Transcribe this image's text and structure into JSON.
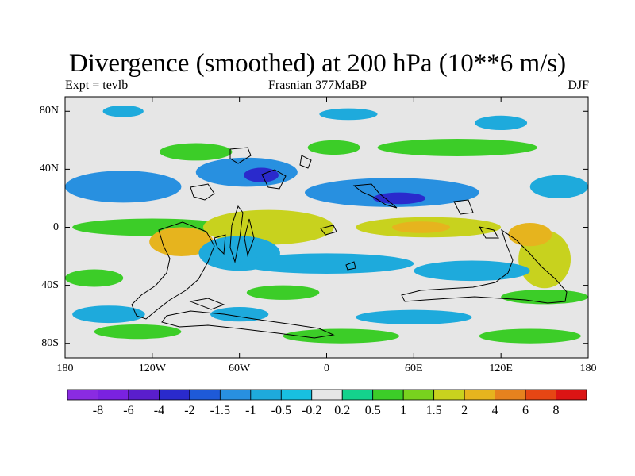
{
  "title": "Divergence (smoothed) at 200 hPa (10**6 m/s)",
  "subtitle_left": "Expt = tevlb",
  "subtitle_center": "Frasnian 377MaBP",
  "subtitle_right": "DJF",
  "chart_data": {
    "type": "heatmap",
    "projection": "cylindrical-equidistant",
    "variable": "200 hPa divergence (smoothed)",
    "units": "10**6 m/s",
    "xlim": [
      -180,
      180
    ],
    "ylim": [
      -90,
      90
    ],
    "x_ticks": [
      {
        "value": -180,
        "label": "180"
      },
      {
        "value": -120,
        "label": "120W"
      },
      {
        "value": -60,
        "label": "60W"
      },
      {
        "value": 0,
        "label": "0"
      },
      {
        "value": 60,
        "label": "60E"
      },
      {
        "value": 120,
        "label": "120E"
      },
      {
        "value": 180,
        "label": "180"
      }
    ],
    "y_ticks": [
      {
        "value": 80,
        "label": "80N"
      },
      {
        "value": 40,
        "label": "40N"
      },
      {
        "value": 0,
        "label": "0"
      },
      {
        "value": -40,
        "label": "40S"
      },
      {
        "value": -80,
        "label": "80S"
      }
    ],
    "colorbar": {
      "labels": [
        "-8",
        "-6",
        "-4",
        "-2",
        "-1.5",
        "-1",
        "-0.5",
        "-0.2",
        "0.2",
        "0.5",
        "1",
        "1.5",
        "2",
        "4",
        "6",
        "8"
      ],
      "colors": [
        "#8a2be2",
        "#7a22e0",
        "#5a1ecc",
        "#2a2acc",
        "#1e5ad8",
        "#2890e0",
        "#1eaadc",
        "#18c0e0",
        "#e6e6e6",
        "#14d28c",
        "#3ccd28",
        "#78d21e",
        "#c8d21e",
        "#e6b41e",
        "#e6821e",
        "#e64614",
        "#dc1414"
      ]
    },
    "regions": [
      {
        "lon": -140,
        "lat": 80,
        "rx": 14,
        "ry": 4,
        "value": -0.8
      },
      {
        "lon": 15,
        "lat": 78,
        "rx": 20,
        "ry": 4,
        "value": -0.7
      },
      {
        "lon": 120,
        "lat": 72,
        "rx": 18,
        "ry": 5,
        "value": -0.6
      },
      {
        "lon": -90,
        "lat": 52,
        "rx": 25,
        "ry": 6,
        "value": 0.6
      },
      {
        "lon": 5,
        "lat": 55,
        "rx": 18,
        "ry": 5,
        "value": 0.6
      },
      {
        "lon": 90,
        "lat": 55,
        "rx": 55,
        "ry": 6,
        "value": 0.5
      },
      {
        "lon": -140,
        "lat": 28,
        "rx": 40,
        "ry": 11,
        "value": -1.2
      },
      {
        "lon": -55,
        "lat": 38,
        "rx": 35,
        "ry": 10,
        "value": -1.3
      },
      {
        "lon": -45,
        "lat": 36,
        "rx": 12,
        "ry": 5,
        "value": -3.0
      },
      {
        "lon": 45,
        "lat": 24,
        "rx": 60,
        "ry": 10,
        "value": -1.3
      },
      {
        "lon": 50,
        "lat": 20,
        "rx": 18,
        "ry": 4,
        "value": -3.0
      },
      {
        "lon": 160,
        "lat": 28,
        "rx": 20,
        "ry": 8,
        "value": -0.8
      },
      {
        "lon": -120,
        "lat": 0,
        "rx": 55,
        "ry": 6,
        "value": 0.8
      },
      {
        "lon": -40,
        "lat": 0,
        "rx": 45,
        "ry": 12,
        "value": 1.8
      },
      {
        "lon": 70,
        "lat": 0,
        "rx": 50,
        "ry": 7,
        "value": 1.6
      },
      {
        "lon": 65,
        "lat": 0,
        "rx": 20,
        "ry": 4,
        "value": 2.5
      },
      {
        "lon": -100,
        "lat": -10,
        "rx": 22,
        "ry": 10,
        "value": 2.2
      },
      {
        "lon": 150,
        "lat": -22,
        "rx": 18,
        "ry": 20,
        "value": 1.8
      },
      {
        "lon": 140,
        "lat": -5,
        "rx": 15,
        "ry": 8,
        "value": 2.5
      },
      {
        "lon": -60,
        "lat": -18,
        "rx": 28,
        "ry": 12,
        "value": -1.0
      },
      {
        "lon": 0,
        "lat": -25,
        "rx": 60,
        "ry": 7,
        "value": -0.8
      },
      {
        "lon": 100,
        "lat": -30,
        "rx": 40,
        "ry": 7,
        "value": -0.7
      },
      {
        "lon": -160,
        "lat": -35,
        "rx": 20,
        "ry": 6,
        "value": 0.5
      },
      {
        "lon": -30,
        "lat": -45,
        "rx": 25,
        "ry": 5,
        "value": 0.8
      },
      {
        "lon": 150,
        "lat": -48,
        "rx": 30,
        "ry": 5,
        "value": 0.6
      },
      {
        "lon": -150,
        "lat": -60,
        "rx": 25,
        "ry": 6,
        "value": -0.7
      },
      {
        "lon": -60,
        "lat": -60,
        "rx": 20,
        "ry": 5,
        "value": -0.8
      },
      {
        "lon": 60,
        "lat": -62,
        "rx": 40,
        "ry": 5,
        "value": -0.6
      },
      {
        "lon": -130,
        "lat": -72,
        "rx": 30,
        "ry": 5,
        "value": 0.6
      },
      {
        "lon": 10,
        "lat": -75,
        "rx": 40,
        "ry": 5,
        "value": 0.6
      },
      {
        "lon": 140,
        "lat": -75,
        "rx": 35,
        "ry": 5,
        "value": 0.7
      }
    ]
  }
}
